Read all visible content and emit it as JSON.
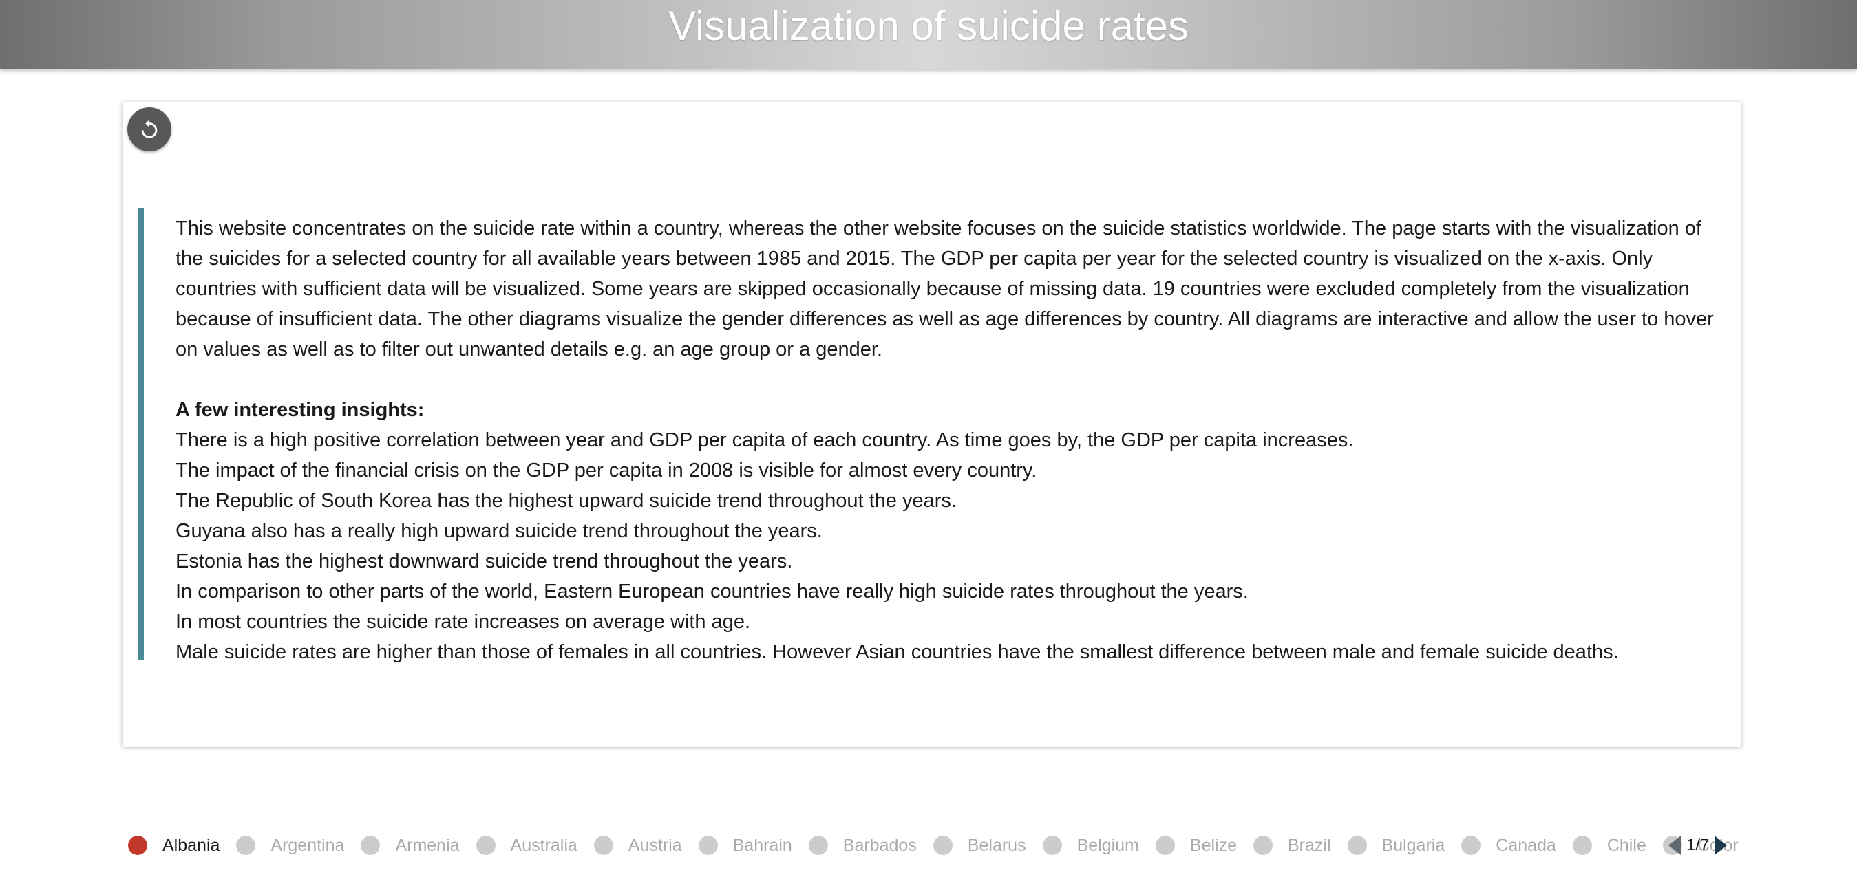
{
  "header": {
    "title": "Visualization of suicide rates"
  },
  "reset_button": {
    "icon": "reset-icon"
  },
  "content": {
    "intro": "This website concentrates on the suicide rate within a country, whereas the other website focuses on the suicide statistics worldwide. The page starts with the visualization of the suicides for a selected country for all available years between 1985 and 2015. The GDP per capita per year for the selected country is visualized on the x-axis. Only countries with sufficient data will be visualized. Some years are skipped occasionally because of missing data. 19 countries were excluded completely from the visualization because of insufficient data. The other diagrams visualize the gender differences as well as age differences by country. All diagrams are interactive and allow the user to hover on values as well as to filter out unwanted details e.g. an age group or a gender.",
    "insights_title": "A few interesting insights:",
    "insights": [
      "There is a high positive correlation between year and GDP per capita of each country. As time goes by, the GDP per capita increases.",
      "The impact of the financial crisis on the GDP per capita in 2008 is visible for almost every country.",
      "The Republic of South Korea has the highest upward suicide trend throughout the years.",
      "Guyana also has a really high upward suicide trend throughout the years.",
      "Estonia has the highest downward suicide trend throughout the years.",
      "In comparison to other parts of the world, Eastern European countries have really high suicide rates throughout the years.",
      "In most countries the suicide rate increases on average with age.",
      "Male suicide rates are higher than those of females in all countries. However Asian countries have the smallest difference between male and female suicide deaths."
    ]
  },
  "legend": {
    "items": [
      {
        "label": "Albania",
        "active": true
      },
      {
        "label": "Argentina",
        "active": false
      },
      {
        "label": "Armenia",
        "active": false
      },
      {
        "label": "Australia",
        "active": false
      },
      {
        "label": "Austria",
        "active": false
      },
      {
        "label": "Bahrain",
        "active": false
      },
      {
        "label": "Barbados",
        "active": false
      },
      {
        "label": "Belarus",
        "active": false
      },
      {
        "label": "Belgium",
        "active": false
      },
      {
        "label": "Belize",
        "active": false
      },
      {
        "label": "Brazil",
        "active": false
      },
      {
        "label": "Bulgaria",
        "active": false
      },
      {
        "label": "Canada",
        "active": false
      },
      {
        "label": "Chile",
        "active": false
      },
      {
        "label": "Color",
        "active": false
      }
    ],
    "active_color": "#c0392b",
    "inactive_color": "#cccccc",
    "page": "1/7"
  },
  "colors": {
    "accent_bar": "#4a8a94",
    "reset_button": "#585858"
  }
}
